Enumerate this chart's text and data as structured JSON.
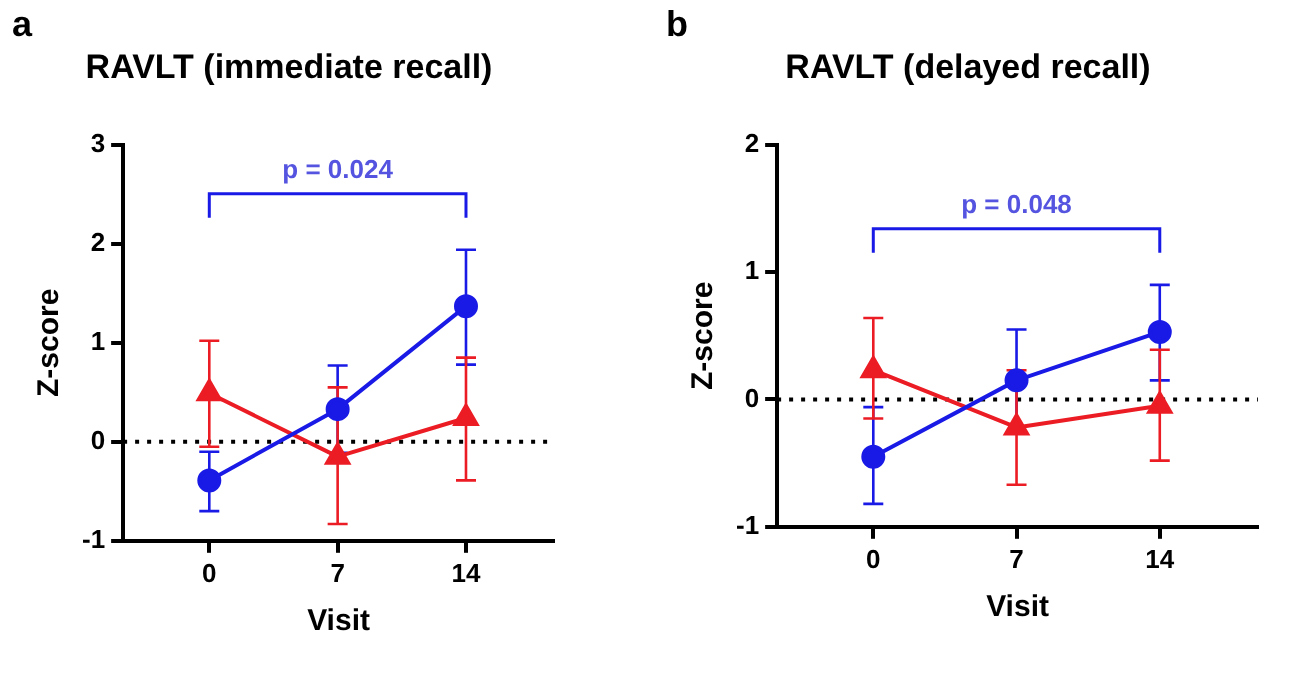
{
  "chart_data": [
    {
      "type": "line",
      "title": "RAVLT (immediate recall)",
      "xlabel": "Visit",
      "ylabel": "Z-score",
      "annotations": [
        "a",
        "p = 0.024"
      ],
      "x": [
        0,
        7,
        14
      ],
      "xlim": [
        -4.7,
        18.8
      ],
      "xticks": [
        0,
        7,
        14
      ],
      "ylim": [
        -1,
        3
      ],
      "yticks": [
        -1,
        0,
        1,
        2,
        3
      ],
      "grid": false,
      "legend": false,
      "line_style": "solid",
      "ref_lines": [
        {
          "axis": "y",
          "value": 0,
          "color": "#000000",
          "line_style": "dotted"
        }
      ],
      "series": [
        {
          "color": "#1a1ae6",
          "marker": "circle",
          "values": [
            -0.39,
            0.33,
            1.37
          ],
          "errors": [
            [
              -0.7,
              -0.1
            ],
            [
              -0.11,
              0.77
            ],
            [
              0.78,
              1.94
            ]
          ]
        },
        {
          "color": "#ec1c24",
          "marker": "triangle",
          "values": [
            0.49,
            -0.15,
            0.24
          ],
          "errors": [
            [
              -0.05,
              1.02
            ],
            [
              -0.83,
              0.55
            ],
            [
              -0.39,
              0.85
            ]
          ]
        }
      ]
    },
    {
      "type": "line",
      "title": "RAVLT (delayed recall)",
      "xlabel": "Visit",
      "ylabel": "Z-score",
      "annotations": [
        "b",
        "p = 0.048"
      ],
      "x": [
        0,
        7,
        14
      ],
      "xlim": [
        -4.7,
        18.8
      ],
      "xticks": [
        0,
        7,
        14
      ],
      "ylim": [
        -1,
        2
      ],
      "yticks": [
        -1,
        0,
        1,
        2
      ],
      "grid": false,
      "legend": false,
      "line_style": "solid",
      "ref_lines": [
        {
          "axis": "y",
          "value": 0,
          "color": "#000000",
          "line_style": "dotted"
        }
      ],
      "series": [
        {
          "color": "#1a1ae6",
          "marker": "circle",
          "values": [
            -0.45,
            0.15,
            0.53
          ],
          "errors": [
            [
              -0.82,
              -0.06
            ],
            [
              -0.25,
              0.55
            ],
            [
              0.15,
              0.9
            ]
          ]
        },
        {
          "color": "#ec1c24",
          "marker": "triangle",
          "values": [
            0.23,
            -0.22,
            -0.05
          ],
          "errors": [
            [
              -0.15,
              0.64
            ],
            [
              -0.67,
              0.23
            ],
            [
              -0.48,
              0.39
            ]
          ]
        }
      ]
    }
  ]
}
